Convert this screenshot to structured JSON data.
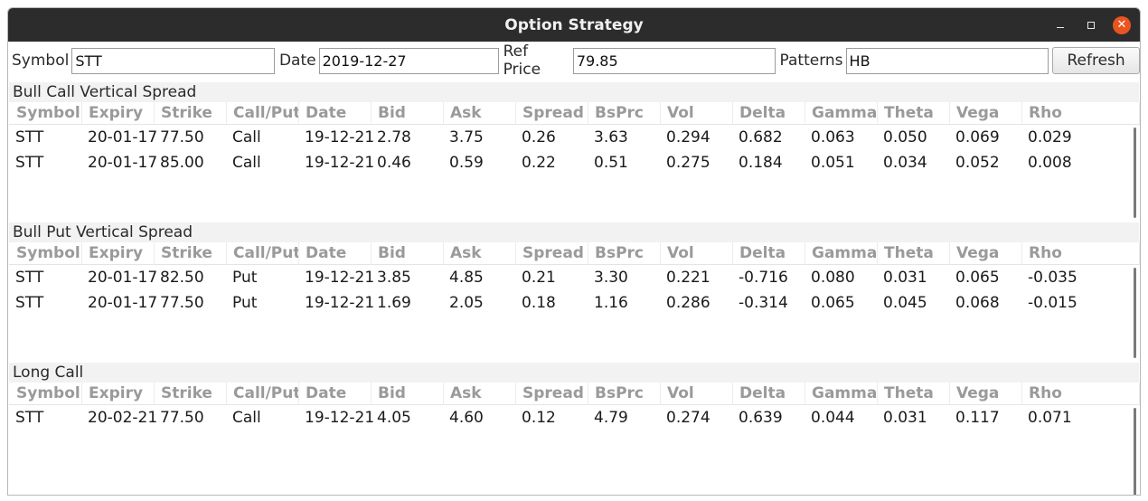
{
  "window": {
    "title": "Option Strategy"
  },
  "toolbar": {
    "symbol_label": "Symbol",
    "symbol_value": "STT",
    "date_label": "Date",
    "date_value": "2019-12-27",
    "refprice_label": "Ref Price",
    "refprice_value": "79.85",
    "patterns_label": "Patterns",
    "patterns_value": "HB",
    "refresh_label": "Refresh"
  },
  "columns": [
    "Symbol",
    "Expiry",
    "Strike",
    "Call/Put",
    "Date",
    "Bid",
    "Ask",
    "Spread",
    "BsPrc",
    "Vol",
    "Delta",
    "Gamma",
    "Theta",
    "Vega",
    "Rho"
  ],
  "sections": [
    {
      "title": "Bull Call Vertical Spread",
      "rows": [
        [
          "STT",
          "20-01-17",
          "77.50",
          "Call",
          "19-12-21",
          "2.78",
          "3.75",
          "0.26",
          "3.63",
          "0.294",
          "0.682",
          "0.063",
          "0.050",
          "0.069",
          "0.029"
        ],
        [
          "STT",
          "20-01-17",
          "85.00",
          "Call",
          "19-12-21",
          "0.46",
          "0.59",
          "0.22",
          "0.51",
          "0.275",
          "0.184",
          "0.051",
          "0.034",
          "0.052",
          "0.008"
        ]
      ]
    },
    {
      "title": "Bull Put Vertical Spread",
      "rows": [
        [
          "STT",
          "20-01-17",
          "82.50",
          "Put",
          "19-12-21",
          "3.85",
          "4.85",
          "0.21",
          "3.30",
          "0.221",
          "-0.716",
          "0.080",
          "0.031",
          "0.065",
          "-0.035"
        ],
        [
          "STT",
          "20-01-17",
          "77.50",
          "Put",
          "19-12-21",
          "1.69",
          "2.05",
          "0.18",
          "1.16",
          "0.286",
          "-0.314",
          "0.065",
          "0.045",
          "0.068",
          "-0.015"
        ]
      ]
    },
    {
      "title": "Long Call",
      "rows": [
        [
          "STT",
          "20-02-21",
          "77.50",
          "Call",
          "19-12-21",
          "4.05",
          "4.60",
          "0.12",
          "4.79",
          "0.274",
          "0.639",
          "0.044",
          "0.031",
          "0.117",
          "0.071"
        ]
      ]
    }
  ]
}
